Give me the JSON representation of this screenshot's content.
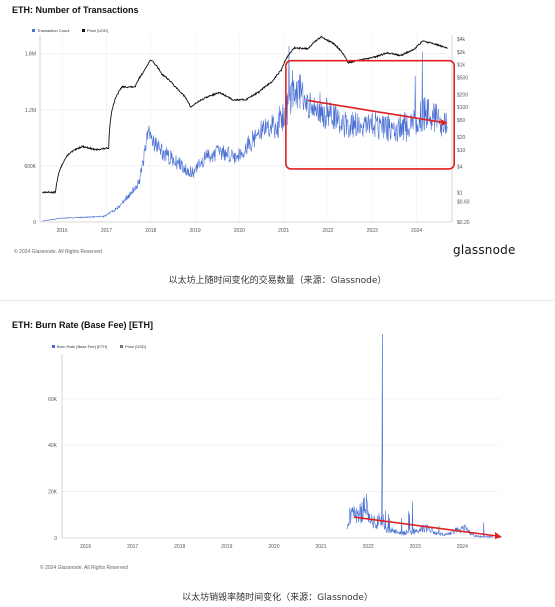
{
  "charts": [
    {
      "title": "ETH: Number of Transactions",
      "copyright": "© 2024 Glassnode. All Rights Reserved",
      "brand": "glassnode",
      "caption": "以太坊上随时间变化的交易数量（来源：Glassnode）"
    },
    {
      "title": "ETH: Burn Rate (Base Fee) [ETH]",
      "copyright": "© 2024 Glassnode. All Rights Reserved",
      "caption": "以太坊销毁率随时间变化（来源：Glassnode）"
    }
  ],
  "colors": {
    "transactions": "#4a6fd4",
    "price": "#111111",
    "highlight": "#e02020",
    "trend": "#e02020"
  },
  "chart_data": [
    {
      "type": "line",
      "title": "ETH: Number of Transactions",
      "legend": [
        "Transaction Count",
        "Price [USD]"
      ],
      "legend_position": "top-left",
      "grid": true,
      "x": [
        "2016",
        "2017",
        "2018",
        "2019",
        "2020",
        "2021",
        "2022",
        "2023",
        "2024"
      ],
      "ylim": [
        0,
        2000000
      ],
      "y_ticks": [
        "0",
        "600K",
        "1.2M",
        "1.8M"
      ],
      "y2_scale": "log",
      "y2_ticks": [
        "$0.20",
        "$0.60",
        "$1",
        "$4",
        "$10",
        "$20",
        "$50",
        "$100",
        "$200",
        "$500",
        "$1k",
        "$2k",
        "$4k"
      ],
      "series": [
        {
          "name": "Transaction Count",
          "axis": "left",
          "x": [
            2015.6,
            2016.0,
            2016.5,
            2017.0,
            2017.3,
            2017.6,
            2017.8,
            2018.0,
            2018.3,
            2018.6,
            2019.0,
            2019.3,
            2019.6,
            2020.0,
            2020.3,
            2020.6,
            2020.9,
            2021.1,
            2021.3,
            2021.6,
            2021.9,
            2022.2,
            2022.5,
            2022.8,
            2023.1,
            2023.4,
            2023.7,
            2024.0,
            2024.3,
            2024.5,
            2024.75
          ],
          "values": [
            10000,
            40000,
            50000,
            60000,
            150000,
            300000,
            450000,
            950000,
            750000,
            650000,
            520000,
            700000,
            750000,
            700000,
            850000,
            1000000,
            1050000,
            1150000,
            1500000,
            1200000,
            1200000,
            1100000,
            1050000,
            1050000,
            1050000,
            1000000,
            1000000,
            1050000,
            1200000,
            1100000,
            1050000
          ]
        },
        {
          "name": "Price [USD]",
          "axis": "right",
          "x": [
            2015.6,
            2015.9,
            2016.2,
            2016.5,
            2016.8,
            2017.1,
            2017.4,
            2017.7,
            2017.9,
            2018.05,
            2018.3,
            2018.6,
            2018.95,
            2019.3,
            2019.6,
            2019.9,
            2020.2,
            2020.5,
            2020.8,
            2021.0,
            2021.3,
            2021.6,
            2021.9,
            2022.2,
            2022.5,
            2022.8,
            2023.1,
            2023.4,
            2023.7,
            2024.0,
            2024.2,
            2024.5,
            2024.75
          ],
          "values": [
            1,
            1,
            8,
            12,
            10,
            11,
            300,
            300,
            700,
            1300,
            600,
            300,
            100,
            170,
            220,
            150,
            150,
            230,
            400,
            750,
            2500,
            2400,
            4500,
            3000,
            1100,
            1300,
            1500,
            1900,
            1650,
            2300,
            3600,
            3000,
            2400
          ]
        }
      ],
      "annotations": [
        "red box 2021-2024",
        "downward red trend arrow"
      ]
    },
    {
      "type": "line",
      "title": "ETH: Burn Rate (Base Fee) [ETH]",
      "legend": [
        "Burn Rate (Base Fee) [ETH]",
        "Price [USD]"
      ],
      "legend_position": "top-left",
      "grid": true,
      "x": [
        "2016",
        "2017",
        "2018",
        "2019",
        "2020",
        "2021",
        "2022",
        "2023",
        "2024"
      ],
      "ylim": [
        0,
        75000
      ],
      "y_ticks": [
        "0",
        "20K",
        "40K",
        "60K"
      ],
      "series": [
        {
          "name": "Burn Rate (Base Fee) [ETH]",
          "x": [
            2021.6,
            2021.7,
            2021.8,
            2021.9,
            2022.0,
            2022.1,
            2022.2,
            2022.3,
            2022.35,
            2022.4,
            2022.5,
            2022.7,
            2022.9,
            2023.1,
            2023.3,
            2023.5,
            2023.7,
            2023.9,
            2024.1,
            2024.3,
            2024.5,
            2024.7
          ],
          "values": [
            5000,
            12000,
            9000,
            11000,
            14000,
            9000,
            6000,
            8000,
            71000,
            4000,
            4000,
            2000,
            2500,
            3000,
            4500,
            2000,
            1500,
            3000,
            4000,
            1000,
            500,
            600
          ]
        }
      ],
      "annotations": [
        "downward red trend arrow"
      ]
    }
  ]
}
